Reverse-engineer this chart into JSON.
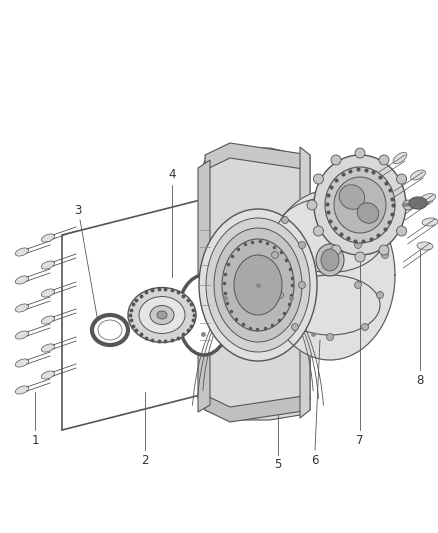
{
  "bg_color": "#ffffff",
  "line_color": "#555555",
  "label_color": "#333333",
  "figsize": [
    4.38,
    5.33
  ],
  "dpi": 100,
  "lw": 0.8,
  "gray_light": "#e8e8e8",
  "gray_mid": "#c8c8c8",
  "gray_dark": "#a0a0a0",
  "gray_fill": "#d5d5d5"
}
